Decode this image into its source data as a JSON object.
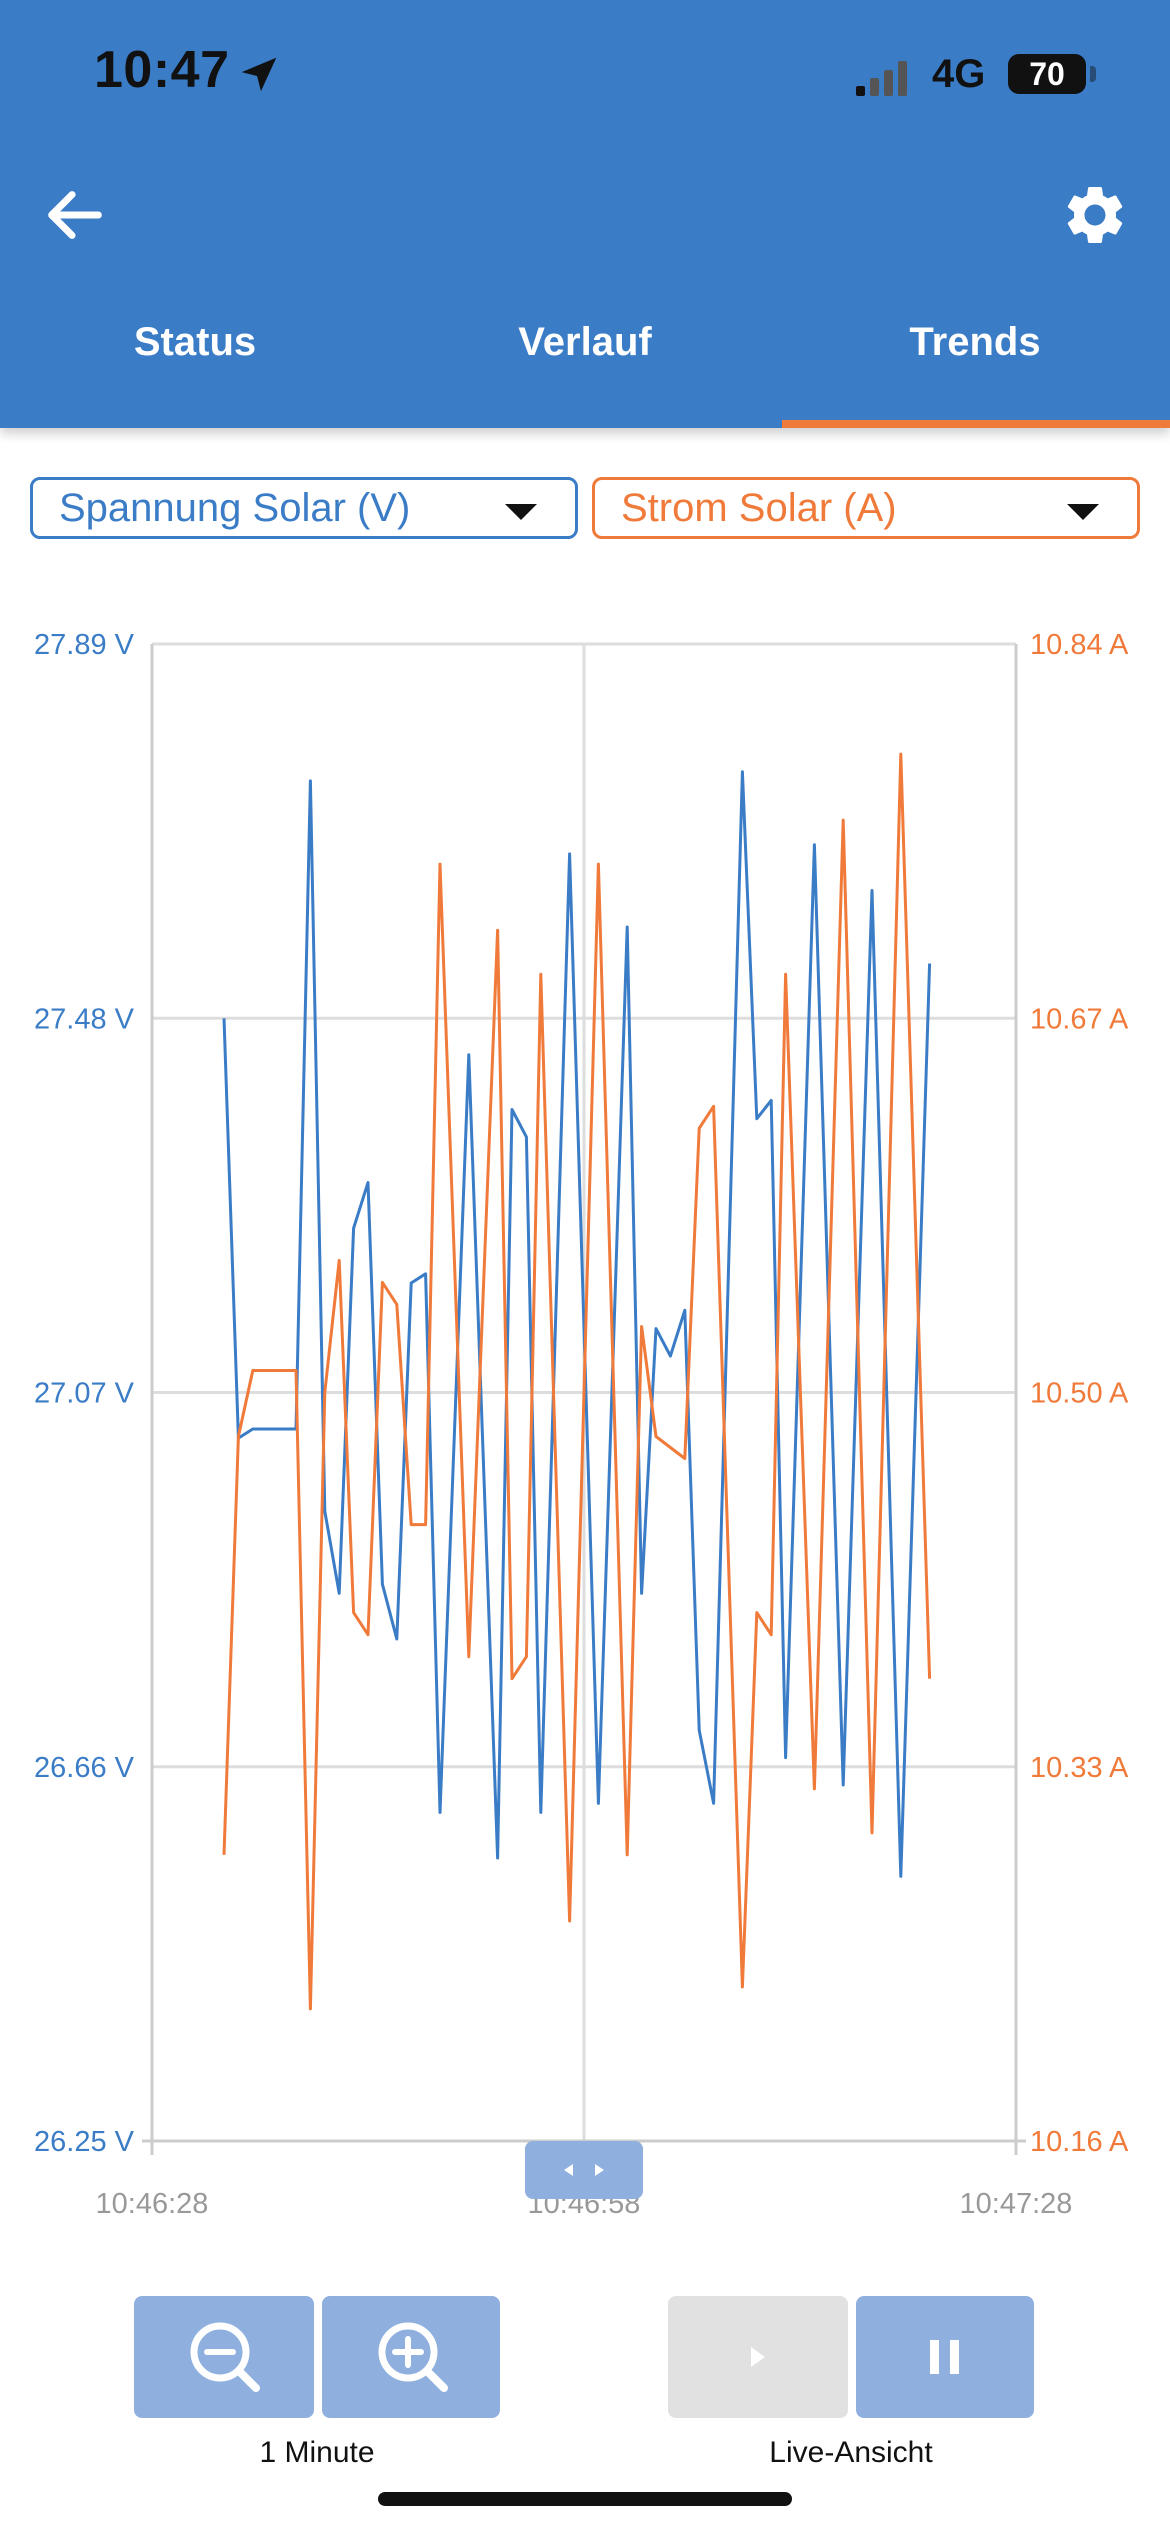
{
  "status_bar": {
    "time": "10:47",
    "network": "4G",
    "battery": "70"
  },
  "header": {
    "tabs": [
      {
        "label": "Status",
        "active": false
      },
      {
        "label": "Verlauf",
        "active": false
      },
      {
        "label": "Trends",
        "active": true
      }
    ],
    "back_icon": "arrow-left-icon",
    "settings_icon": "gear-icon",
    "bg_color": "#3a7cc6",
    "accent_color": "#f07a3a"
  },
  "selectors": {
    "left": {
      "value": "Spannung Solar (V)",
      "color": "#3a7cc6"
    },
    "right": {
      "value": "Strom Solar (A)",
      "color": "#f07a3a"
    }
  },
  "chart_data": {
    "type": "line",
    "y_left": {
      "ticks": [
        "27.89 V",
        "27.48 V",
        "27.07 V",
        "26.66 V",
        "26.25 V"
      ],
      "ylim": [
        26.25,
        27.89
      ]
    },
    "y_right": {
      "ticks": [
        "10.84 A",
        "10.67 A",
        "10.50 A",
        "10.33 A",
        "10.16 A"
      ],
      "ylim": [
        10.16,
        10.84
      ]
    },
    "x_ticks": [
      "10:46:28",
      "10:46:58",
      "10:47:28"
    ],
    "grid": true,
    "series": [
      {
        "color": "#3a7cc6",
        "axis": "left",
        "points": [
          [
            5,
            27.48
          ],
          [
            6,
            27.02
          ],
          [
            7,
            27.03
          ],
          [
            8,
            27.03
          ],
          [
            9,
            27.03
          ],
          [
            10,
            27.03
          ],
          [
            11,
            27.74
          ],
          [
            12,
            26.94
          ],
          [
            13,
            26.85
          ],
          [
            14,
            27.25
          ],
          [
            15,
            27.3
          ],
          [
            16,
            26.86
          ],
          [
            17,
            26.8
          ],
          [
            18,
            27.19
          ],
          [
            19,
            27.2
          ],
          [
            20,
            26.61
          ],
          [
            22,
            27.44
          ],
          [
            24,
            26.56
          ],
          [
            25,
            27.38
          ],
          [
            26,
            27.35
          ],
          [
            27,
            26.61
          ],
          [
            29,
            27.66
          ],
          [
            31,
            26.62
          ],
          [
            33,
            27.58
          ],
          [
            34,
            26.85
          ],
          [
            35,
            27.14
          ],
          [
            36,
            27.11
          ],
          [
            37,
            27.16
          ],
          [
            38,
            26.7
          ],
          [
            39,
            26.62
          ],
          [
            41,
            27.75
          ],
          [
            42,
            27.37
          ],
          [
            43,
            27.39
          ],
          [
            44,
            26.67
          ],
          [
            46,
            27.67
          ],
          [
            48,
            26.64
          ],
          [
            50,
            27.62
          ],
          [
            52,
            26.54
          ],
          [
            54,
            27.54
          ]
        ]
      },
      {
        "color": "#f07a3a",
        "axis": "right",
        "points": [
          [
            5,
            10.29
          ],
          [
            6,
            10.48
          ],
          [
            7,
            10.51
          ],
          [
            8,
            10.51
          ],
          [
            9,
            10.51
          ],
          [
            10,
            10.51
          ],
          [
            11,
            10.22
          ],
          [
            12,
            10.5
          ],
          [
            13,
            10.56
          ],
          [
            14,
            10.4
          ],
          [
            15,
            10.39
          ],
          [
            16,
            10.55
          ],
          [
            17,
            10.54
          ],
          [
            18,
            10.44
          ],
          [
            19,
            10.44
          ],
          [
            20,
            10.74
          ],
          [
            22,
            10.38
          ],
          [
            24,
            10.71
          ],
          [
            25,
            10.37
          ],
          [
            26,
            10.38
          ],
          [
            27,
            10.69
          ],
          [
            29,
            10.26
          ],
          [
            31,
            10.74
          ],
          [
            33,
            10.29
          ],
          [
            34,
            10.53
          ],
          [
            35,
            10.48
          ],
          [
            37,
            10.47
          ],
          [
            38,
            10.62
          ],
          [
            39,
            10.63
          ],
          [
            41,
            10.23
          ],
          [
            42,
            10.4
          ],
          [
            43,
            10.39
          ],
          [
            44,
            10.69
          ],
          [
            46,
            10.32
          ],
          [
            48,
            10.76
          ],
          [
            50,
            10.3
          ],
          [
            52,
            10.79
          ],
          [
            54,
            10.37
          ]
        ]
      }
    ]
  },
  "controls": {
    "zoom_label": "1 Minute",
    "live_label": "Live-Ansicht",
    "zoom_out_icon": "zoom-out-icon",
    "zoom_in_icon": "zoom-in-icon",
    "play_icon": "play-icon",
    "pause_icon": "pause-icon"
  }
}
